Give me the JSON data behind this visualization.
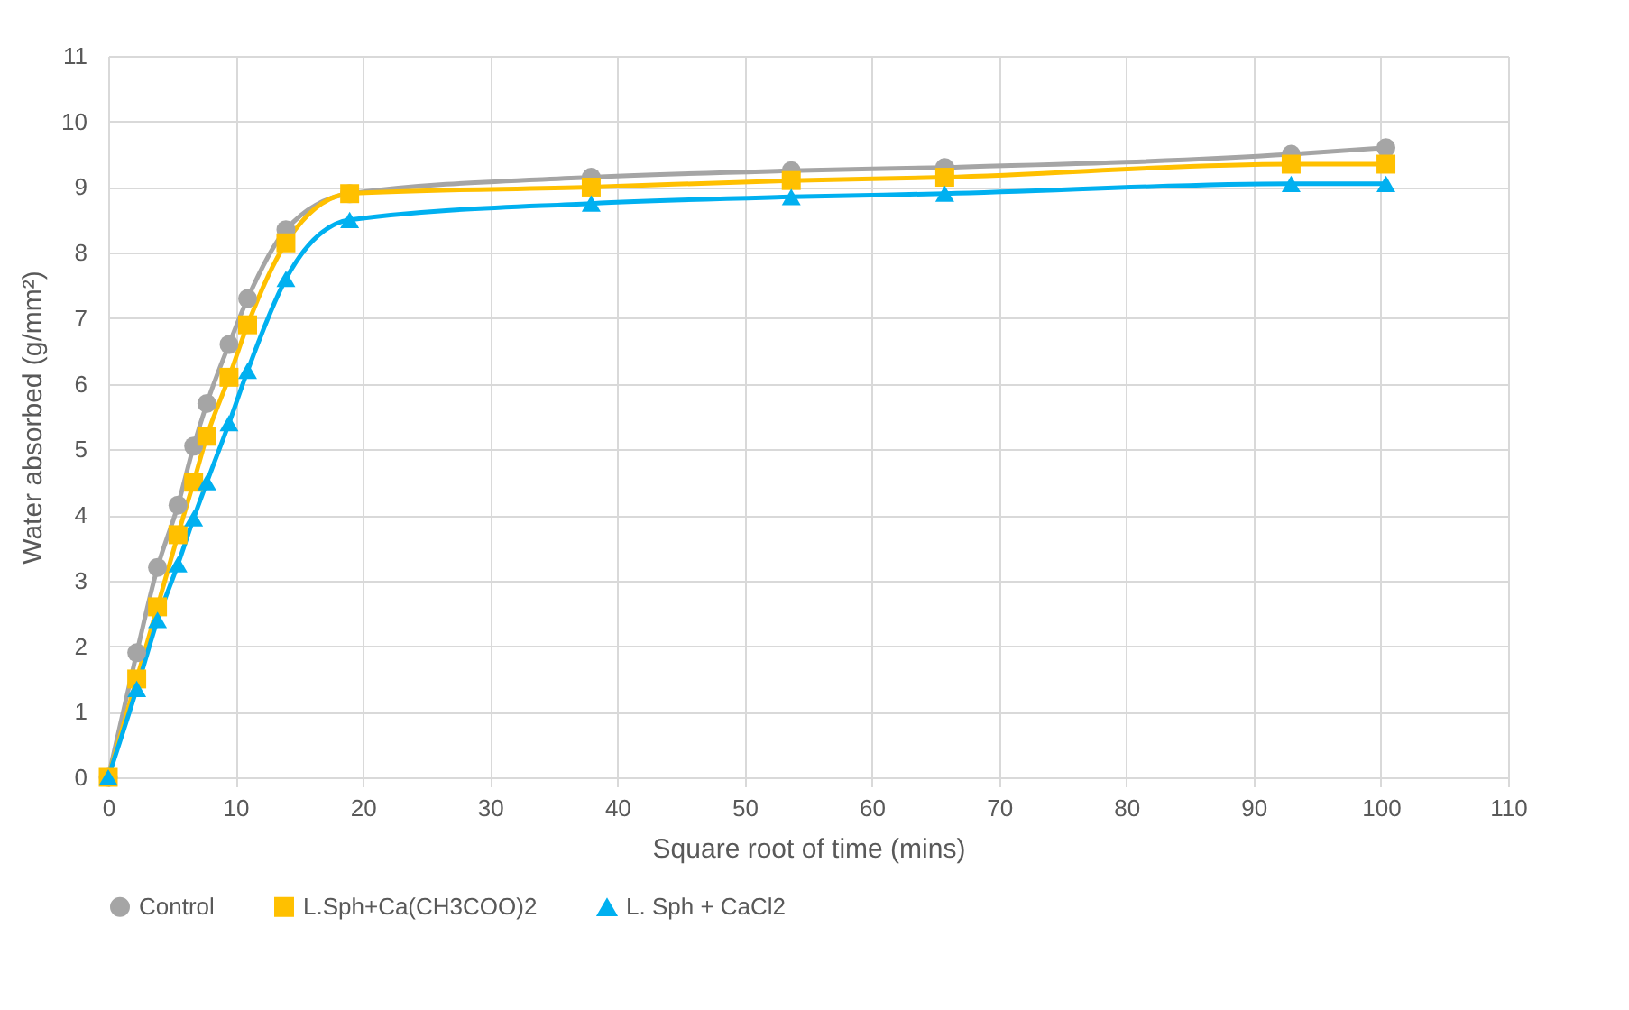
{
  "chart_data": {
    "type": "line",
    "xlabel": "Square root of time (mins)",
    "ylabel": "Water absorbed (g/mm²)",
    "x": [
      0,
      2.24,
      3.87,
      5.48,
      6.71,
      7.75,
      9.49,
      10.95,
      13.96,
      18.97,
      37.95,
      53.67,
      65.73,
      92.95,
      100.4
    ],
    "series": [
      {
        "name": "Control",
        "color": "#a5a5a5",
        "marker": "circle",
        "values": [
          0,
          1.9,
          3.2,
          4.15,
          5.05,
          5.7,
          6.6,
          7.3,
          8.35,
          8.9,
          9.15,
          9.25,
          9.3,
          9.5,
          9.6
        ]
      },
      {
        "name": "L.Sph+Ca(CH3COO)2",
        "color": "#ffc000",
        "marker": "square",
        "values": [
          0,
          1.5,
          2.6,
          3.7,
          4.5,
          5.2,
          6.1,
          6.9,
          8.15,
          8.9,
          9.0,
          9.1,
          9.15,
          9.35,
          9.35
        ]
      },
      {
        "name": "L. Sph + CaCl2",
        "color": "#00b0f0",
        "marker": "triangle",
        "values": [
          0,
          1.35,
          2.4,
          3.25,
          3.95,
          4.5,
          5.4,
          6.2,
          7.6,
          8.5,
          8.75,
          8.85,
          8.9,
          9.05,
          9.05
        ]
      }
    ],
    "xlim": [
      0,
      110
    ],
    "xticks": [
      0,
      10,
      20,
      30,
      40,
      50,
      60,
      70,
      80,
      90,
      100,
      110
    ],
    "ylim": [
      0,
      11
    ],
    "yticks": [
      0,
      1,
      2,
      3,
      4,
      5,
      6,
      7,
      8,
      9,
      10,
      11
    ],
    "grid": true,
    "legend": "bottom"
  }
}
